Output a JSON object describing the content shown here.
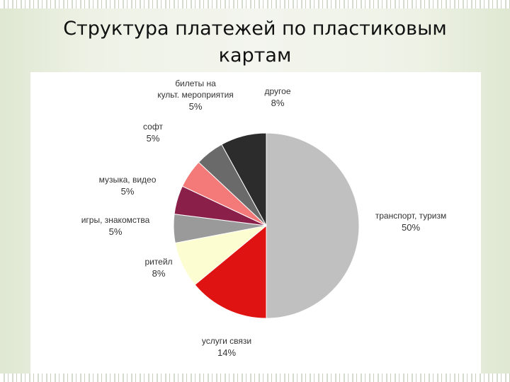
{
  "page": {
    "title_line1": "Структура платежей по пластиковым",
    "title_line2": "картам"
  },
  "chart_data": {
    "type": "pie",
    "title": "Структура платежей по пластиковым картам",
    "start_angle_deg": 0,
    "direction": "clockwise",
    "slices": [
      {
        "label": "транспорт, туризм",
        "value": 50,
        "value_label": "50%",
        "color": "#c0c0c0"
      },
      {
        "label": "услуги связи",
        "value": 14,
        "value_label": "14%",
        "color": "#e01313"
      },
      {
        "label": "ритейл",
        "value": 8,
        "value_label": "8%",
        "color": "#fdfdd2"
      },
      {
        "label": "игры, знакомства",
        "value": 5,
        "value_label": "5%",
        "color": "#9a9a9a"
      },
      {
        "label": "музыка, видео",
        "value": 5,
        "value_label": "5%",
        "color": "#8a1f4a"
      },
      {
        "label": "софт",
        "value": 5,
        "value_label": "5%",
        "color": "#f47a7a"
      },
      {
        "label": "билеты на культ. мероприятия",
        "value": 5,
        "value_label": "5%",
        "color": "#6a6a6a"
      },
      {
        "label": "другое",
        "value": 8,
        "value_label": "8%",
        "color": "#2c2c2c"
      }
    ]
  }
}
